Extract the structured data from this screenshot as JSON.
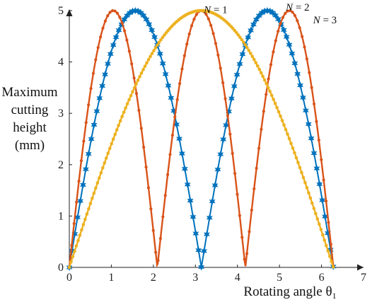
{
  "chart_data": {
    "type": "line",
    "xlabel": "Rotating angle θ",
    "xlabel_subscript": "1",
    "ylabel_lines": [
      "Maximum",
      "cutting",
      "height",
      "(mm)"
    ],
    "xlim": [
      0,
      7
    ],
    "ylim": [
      0,
      5
    ],
    "xticks": [
      0,
      1,
      2,
      3,
      4,
      5,
      6,
      7
    ],
    "yticks": [
      0,
      1,
      2,
      3,
      4,
      5
    ],
    "grid": false,
    "series": [
      {
        "name": "N = 2",
        "color": "#0072BD",
        "marker": "hexagram",
        "N": 2,
        "amplitude": 5,
        "x_range": [
          0,
          6.28
        ]
      },
      {
        "name": "N = 3",
        "color": "#D95319",
        "marker": "dot",
        "N": 3,
        "amplitude": 5,
        "x_range": [
          0,
          6.28
        ]
      },
      {
        "name": "N = 1",
        "color": "#EDB120",
        "marker": "dot",
        "N": 1,
        "amplitude": 5,
        "x_range": [
          0,
          6.28
        ]
      }
    ],
    "annotations": [
      {
        "prefix": "N",
        "suffix": " = 1",
        "series": "N = 1",
        "x": 3.2,
        "y": 4.95
      },
      {
        "prefix": "N",
        "suffix": " = 2",
        "series": "N = 2",
        "x": 5.15,
        "y": 5.0
      },
      {
        "prefix": "N",
        "suffix": " = 3",
        "series": "N = 3",
        "x": 5.8,
        "y": 4.75
      }
    ]
  }
}
